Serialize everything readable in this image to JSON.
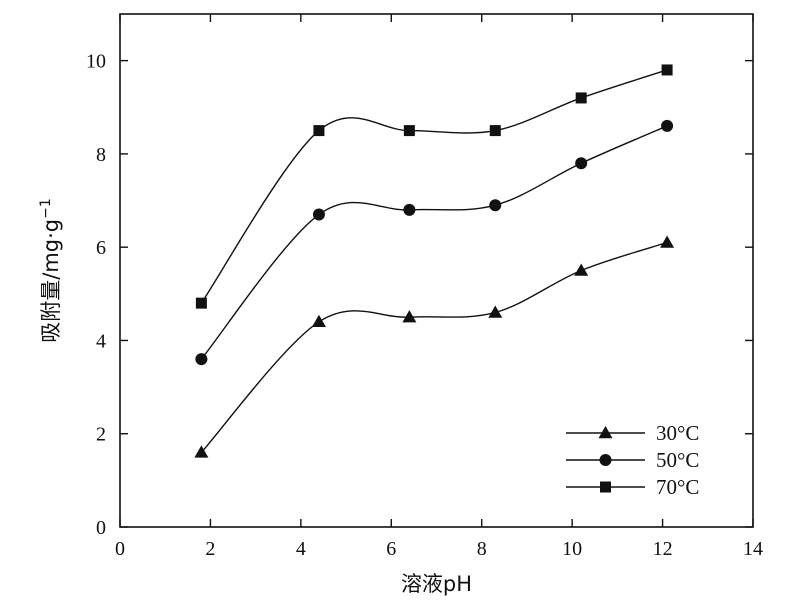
{
  "chart_data": {
    "type": "line",
    "xlabel": "溶液pH",
    "ylabel": "吸附量/mg·g",
    "ylabel_sup": "−1",
    "xlim": [
      0,
      14
    ],
    "ylim": [
      0,
      11
    ],
    "xticks": [
      0,
      2,
      4,
      6,
      8,
      10,
      12,
      14
    ],
    "yticks": [
      0,
      2,
      4,
      6,
      8,
      10
    ],
    "grid": false,
    "legend_position": "bottom-right",
    "series": [
      {
        "name": "30°C",
        "marker": "triangle",
        "x": [
          1.8,
          4.4,
          6.4,
          8.3,
          10.2,
          12.1
        ],
        "y": [
          1.6,
          4.4,
          4.5,
          4.6,
          5.5,
          6.1
        ]
      },
      {
        "name": "50°C",
        "marker": "circle",
        "x": [
          1.8,
          4.4,
          6.4,
          8.3,
          10.2,
          12.1
        ],
        "y": [
          3.6,
          6.7,
          6.8,
          6.9,
          7.8,
          8.6
        ]
      },
      {
        "name": "70°C",
        "marker": "square",
        "x": [
          1.8,
          4.4,
          6.4,
          8.3,
          10.2,
          12.1
        ],
        "y": [
          4.8,
          8.5,
          8.5,
          8.5,
          9.2,
          9.8
        ]
      }
    ]
  }
}
